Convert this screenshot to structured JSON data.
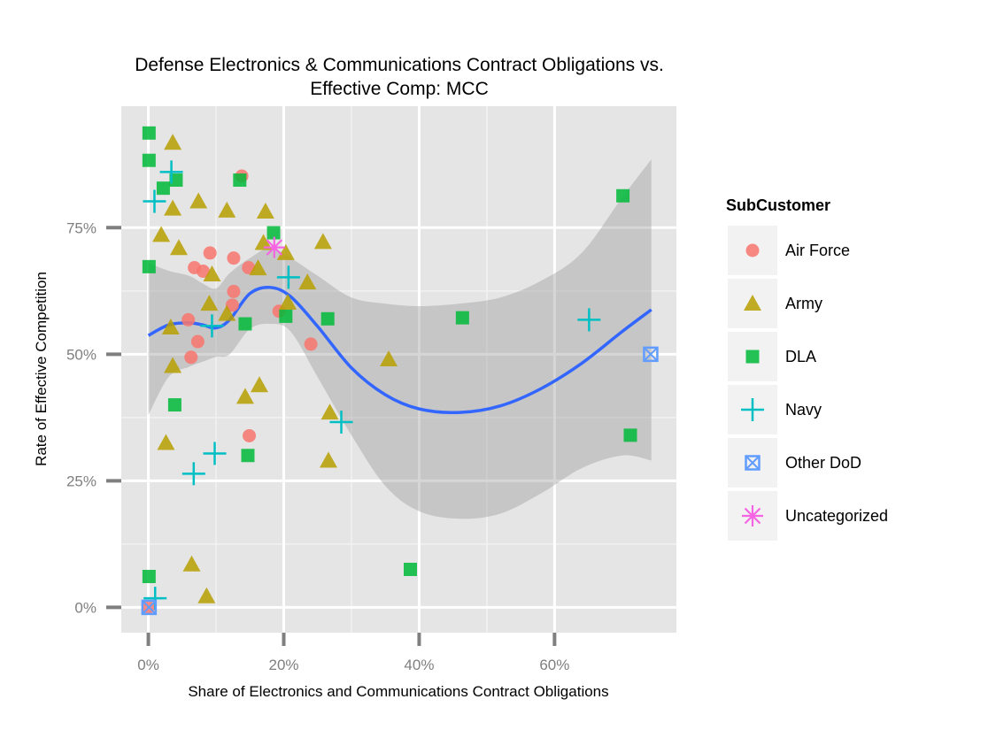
{
  "chart_data": {
    "type": "scatter",
    "title": [
      "Defense Electronics & Communications Contract Obligations vs.",
      "Effective Comp: MCC"
    ],
    "xlabel": "Share of Electronics and Communications Contract Obligations",
    "ylabel": "Rate of Effective Competition",
    "xlim": [
      -0.04,
      0.78
    ],
    "ylim": [
      -0.05,
      0.99
    ],
    "x_ticks": [
      {
        "value": 0.0,
        "label": "0%"
      },
      {
        "value": 0.2,
        "label": "20%"
      },
      {
        "value": 0.4,
        "label": "40%"
      },
      {
        "value": 0.6,
        "label": "60%"
      }
    ],
    "y_ticks": [
      {
        "value": 0.0,
        "label": "0%"
      },
      {
        "value": 0.25,
        "label": "25%"
      },
      {
        "value": 0.5,
        "label": "50%"
      },
      {
        "value": 0.75,
        "label": "75%"
      }
    ],
    "grid": true,
    "legend": {
      "title": "SubCustomer",
      "position": "right"
    },
    "series": [
      {
        "name": "Air Force",
        "shape": "circle",
        "color": "#F8766D",
        "points": [
          [
            0.138,
            0.852
          ],
          [
            0.091,
            0.7
          ],
          [
            0.126,
            0.69
          ],
          [
            0.068,
            0.671
          ],
          [
            0.081,
            0.664
          ],
          [
            0.148,
            0.671
          ],
          [
            0.126,
            0.624
          ],
          [
            0.124,
            0.597
          ],
          [
            0.193,
            0.585
          ],
          [
            0.059,
            0.568
          ],
          [
            0.073,
            0.525
          ],
          [
            0.24,
            0.52
          ],
          [
            0.063,
            0.494
          ],
          [
            0.149,
            0.339
          ],
          [
            0.0,
            0.0
          ]
        ]
      },
      {
        "name": "Army",
        "shape": "triangle",
        "color": "#B79F00",
        "points": [
          [
            0.036,
            0.918
          ],
          [
            0.074,
            0.802
          ],
          [
            0.116,
            0.784
          ],
          [
            0.173,
            0.782
          ],
          [
            0.036,
            0.788
          ],
          [
            0.019,
            0.736
          ],
          [
            0.045,
            0.71
          ],
          [
            0.162,
            0.67
          ],
          [
            0.258,
            0.722
          ],
          [
            0.17,
            0.72
          ],
          [
            0.203,
            0.7
          ],
          [
            0.094,
            0.658
          ],
          [
            0.235,
            0.642
          ],
          [
            0.09,
            0.6
          ],
          [
            0.116,
            0.58
          ],
          [
            0.206,
            0.602
          ],
          [
            0.033,
            0.553
          ],
          [
            0.036,
            0.477
          ],
          [
            0.355,
            0.49
          ],
          [
            0.164,
            0.439
          ],
          [
            0.143,
            0.416
          ],
          [
            0.268,
            0.385
          ],
          [
            0.026,
            0.325
          ],
          [
            0.266,
            0.29
          ],
          [
            0.064,
            0.085
          ],
          [
            0.086,
            0.022
          ]
        ]
      },
      {
        "name": "DLA",
        "shape": "square",
        "color": "#00BA38",
        "points": [
          [
            0.001,
            0.937
          ],
          [
            0.001,
            0.883
          ],
          [
            0.041,
            0.844
          ],
          [
            0.135,
            0.844
          ],
          [
            0.022,
            0.828
          ],
          [
            0.185,
            0.74
          ],
          [
            0.701,
            0.813
          ],
          [
            0.001,
            0.673
          ],
          [
            0.143,
            0.56
          ],
          [
            0.203,
            0.575
          ],
          [
            0.265,
            0.57
          ],
          [
            0.464,
            0.572
          ],
          [
            0.039,
            0.4
          ],
          [
            0.147,
            0.3
          ],
          [
            0.712,
            0.34
          ],
          [
            0.001,
            0.061
          ],
          [
            0.387,
            0.075
          ]
        ]
      },
      {
        "name": "Navy",
        "shape": "plus",
        "color": "#00BFC4",
        "points": [
          [
            0.034,
            0.86
          ],
          [
            0.009,
            0.802
          ],
          [
            0.207,
            0.652
          ],
          [
            0.094,
            0.556
          ],
          [
            0.651,
            0.568
          ],
          [
            0.285,
            0.366
          ],
          [
            0.098,
            0.304
          ],
          [
            0.067,
            0.264
          ],
          [
            0.01,
            0.018
          ]
        ]
      },
      {
        "name": "Other DoD",
        "shape": "square-x",
        "color": "#619CFF",
        "points": [
          [
            0.742,
            0.5
          ],
          [
            0.001,
            0.0
          ]
        ]
      },
      {
        "name": "Uncategorized",
        "shape": "asterisk",
        "color": "#F564E3",
        "points": [
          [
            0.186,
            0.711
          ]
        ]
      }
    ],
    "smooth": {
      "color": "#3366FF",
      "band_color": "#999999",
      "points": [
        [
          0.0,
          0.537,
          0.38,
          0.68
        ],
        [
          0.03,
          0.558,
          0.455,
          0.665
        ],
        [
          0.06,
          0.562,
          0.475,
          0.655
        ],
        [
          0.08,
          0.558,
          0.485,
          0.64
        ],
        [
          0.1,
          0.552,
          0.495,
          0.63
        ],
        [
          0.12,
          0.568,
          0.5,
          0.66
        ],
        [
          0.15,
          0.62,
          0.55,
          0.69
        ],
        [
          0.18,
          0.632,
          0.56,
          0.71
        ],
        [
          0.21,
          0.614,
          0.545,
          0.69
        ],
        [
          0.25,
          0.555,
          0.455,
          0.655
        ],
        [
          0.3,
          0.473,
          0.34,
          0.612
        ],
        [
          0.35,
          0.42,
          0.24,
          0.6
        ],
        [
          0.4,
          0.392,
          0.19,
          0.595
        ],
        [
          0.46,
          0.385,
          0.175,
          0.6
        ],
        [
          0.52,
          0.398,
          0.185,
          0.612
        ],
        [
          0.58,
          0.432,
          0.225,
          0.645
        ],
        [
          0.64,
          0.482,
          0.275,
          0.7
        ],
        [
          0.7,
          0.545,
          0.3,
          0.81
        ],
        [
          0.743,
          0.588,
          0.29,
          0.885
        ]
      ]
    }
  }
}
